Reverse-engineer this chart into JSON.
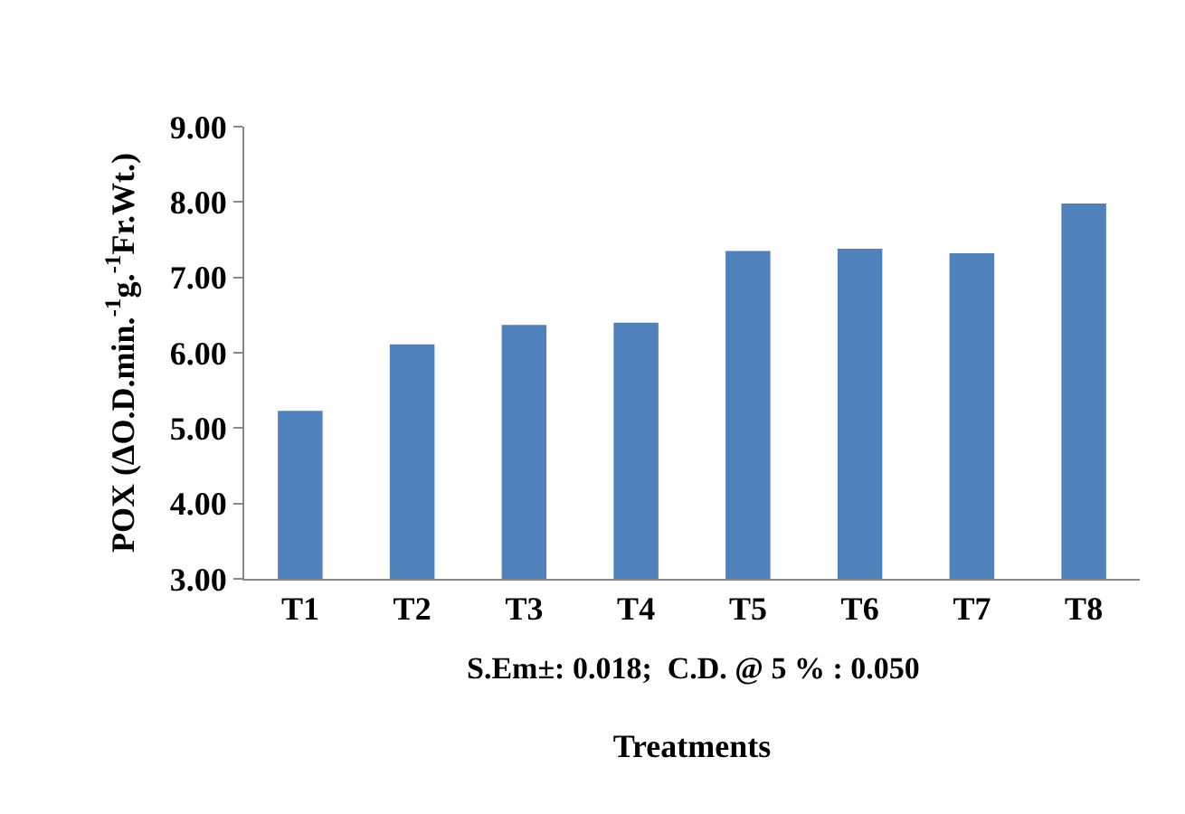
{
  "chart_data": {
    "type": "bar",
    "xlabel": "Treatments",
    "ylabel": "POX (ΔO.D.min.$^{-1}$g.$^{-1}$Fr.Wt.)",
    "categories": [
      "T1",
      "T2",
      "T3",
      "T4",
      "T5",
      "T6",
      "T7",
      "T8"
    ],
    "values": [
      5.23,
      6.11,
      6.37,
      6.4,
      7.35,
      7.38,
      7.32,
      7.98
    ],
    "color": "#4f81bd",
    "ylim": [
      3,
      9
    ],
    "yticks": [
      {
        "value": 3,
        "label": "3.00"
      },
      {
        "value": 4,
        "label": "4.00"
      },
      {
        "value": 5,
        "label": "5.00"
      },
      {
        "value": 6,
        "label": "6.00"
      },
      {
        "value": 7,
        "label": "7.00"
      },
      {
        "value": 8,
        "label": "8.00"
      },
      {
        "value": 9,
        "label": "9.00"
      }
    ],
    "grid": false,
    "annotations": [
      "S.Em±: 0.018;  C.D. @ 5 % : 0.050"
    ]
  }
}
